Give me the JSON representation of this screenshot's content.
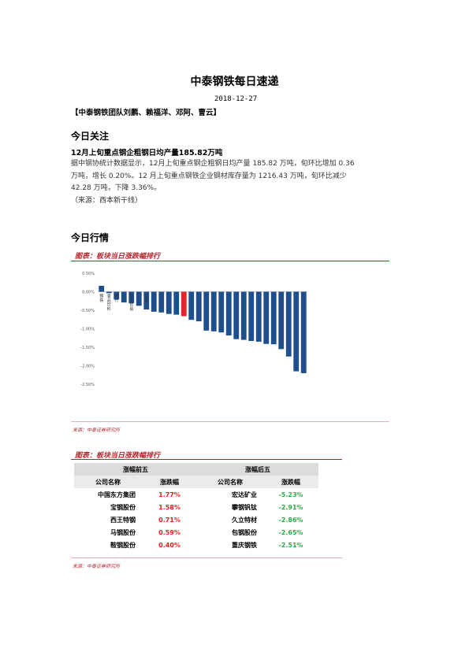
{
  "header": {
    "title": "中泰钢铁每日速递",
    "date": "2018-12-27",
    "team": "【中泰钢铁团队刘鹏、赖福洋、邓阿、曹云】"
  },
  "today_focus": {
    "heading": "今日关注",
    "headline": "12月上旬重点钢企粗钢日均产量185.82万吨",
    "lines": [
      "据中钢协统计数据显示，12月上旬重点钢企粗钢日均产量 185.82 万吨，旬环比增加 0.36",
      "万吨，增长 0.20%。12 月上旬重点钢铁企业钢材库存量为 1216.43 万吨，旬环比减少",
      "42.28 万吨，下降 3.36%。",
      "（来源：西本新干线）"
    ]
  },
  "market": {
    "heading": "今日行情",
    "figure1_title": "图表：板块当日涨跌幅排行",
    "figure1_source": "来源：中泰证券研究所",
    "figure2_title": "图表：板块当日涨跌幅排行",
    "figure2_source": "来源：中泰证券研究所"
  },
  "chart_data": {
    "type": "bar",
    "yticks": [
      "0.50%",
      "0.00%",
      "-0.50%",
      "-1.00%",
      "-1.50%",
      "-2.00%",
      "-2.50%"
    ],
    "ylim": [
      -2.5,
      0.5
    ],
    "categories": [
      "钢铁",
      "食品饮料",
      "银行",
      "",
      "商业贸易",
      "",
      "农业",
      "",
      "",
      "",
      "",
      "",
      "",
      "",
      "",
      "",
      "",
      "",
      "",
      "",
      "",
      "",
      "",
      "",
      "",
      "",
      "",
      ""
    ],
    "values": [
      0.16,
      -0.04,
      -0.21,
      -0.29,
      -0.31,
      -0.38,
      -0.48,
      -0.54,
      -0.56,
      -0.6,
      -0.62,
      -0.66,
      -0.76,
      -0.8,
      -1.05,
      -1.07,
      -1.1,
      -1.18,
      -1.28,
      -1.3,
      -1.33,
      -1.35,
      -1.41,
      -1.42,
      -1.55,
      -1.75,
      -2.15,
      -2.2
    ],
    "highlight_index": 11,
    "colors": {
      "normal": "#1f4e8c",
      "highlight": "#e3242b"
    }
  },
  "rank_table": {
    "top_title": "涨幅前五",
    "bottom_title": "涨幅后五",
    "col_company": "公司名称",
    "col_change": "涨跌幅",
    "top": [
      {
        "name": "中国东方集团",
        "change": "1.77%"
      },
      {
        "name": "宝钢股份",
        "change": "1.58%"
      },
      {
        "name": "西王特钢",
        "change": "0.71%"
      },
      {
        "name": "马钢股份",
        "change": "0.59%"
      },
      {
        "name": "鞍钢股份",
        "change": "0.40%"
      }
    ],
    "bottom": [
      {
        "name": "宏达矿业",
        "change": "-5.23%"
      },
      {
        "name": "攀钢钒钛",
        "change": "-2.91%"
      },
      {
        "name": "久立特材",
        "change": "-2.86%"
      },
      {
        "name": "包钢股份",
        "change": "-2.65%"
      },
      {
        "name": "重庆钢铁",
        "change": "-2.51%"
      }
    ]
  }
}
